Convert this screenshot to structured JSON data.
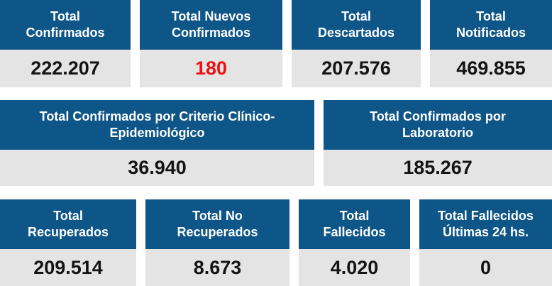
{
  "colors": {
    "header_bg": "#0f5688",
    "value_bg": "#e4e4e4",
    "highlight": "#ee1111"
  },
  "row1": [
    {
      "title": "Total\nConfirmados",
      "value": "222.207"
    },
    {
      "title": "Total Nuevos\nConfirmados",
      "value": "180"
    },
    {
      "title": "Total\nDescartados",
      "value": "207.576"
    },
    {
      "title": "Total\nNotificados",
      "value": "469.855"
    }
  ],
  "row2": [
    {
      "title": "Total Confirmados por Criterio Clínico-\nEpidemiológico",
      "value": "36.940"
    },
    {
      "title": "Total Confirmados por\nLaboratorio",
      "value": "185.267"
    }
  ],
  "row3": [
    {
      "title": "Total\nRecuperados",
      "value": "209.514"
    },
    {
      "title": "Total No\nRecuperados",
      "value": "8.673"
    },
    {
      "title": "Total\nFallecidos",
      "value": "4.020"
    },
    {
      "title": "Total Fallecidos\nÚltimas 24 hs.",
      "value": "0"
    }
  ]
}
